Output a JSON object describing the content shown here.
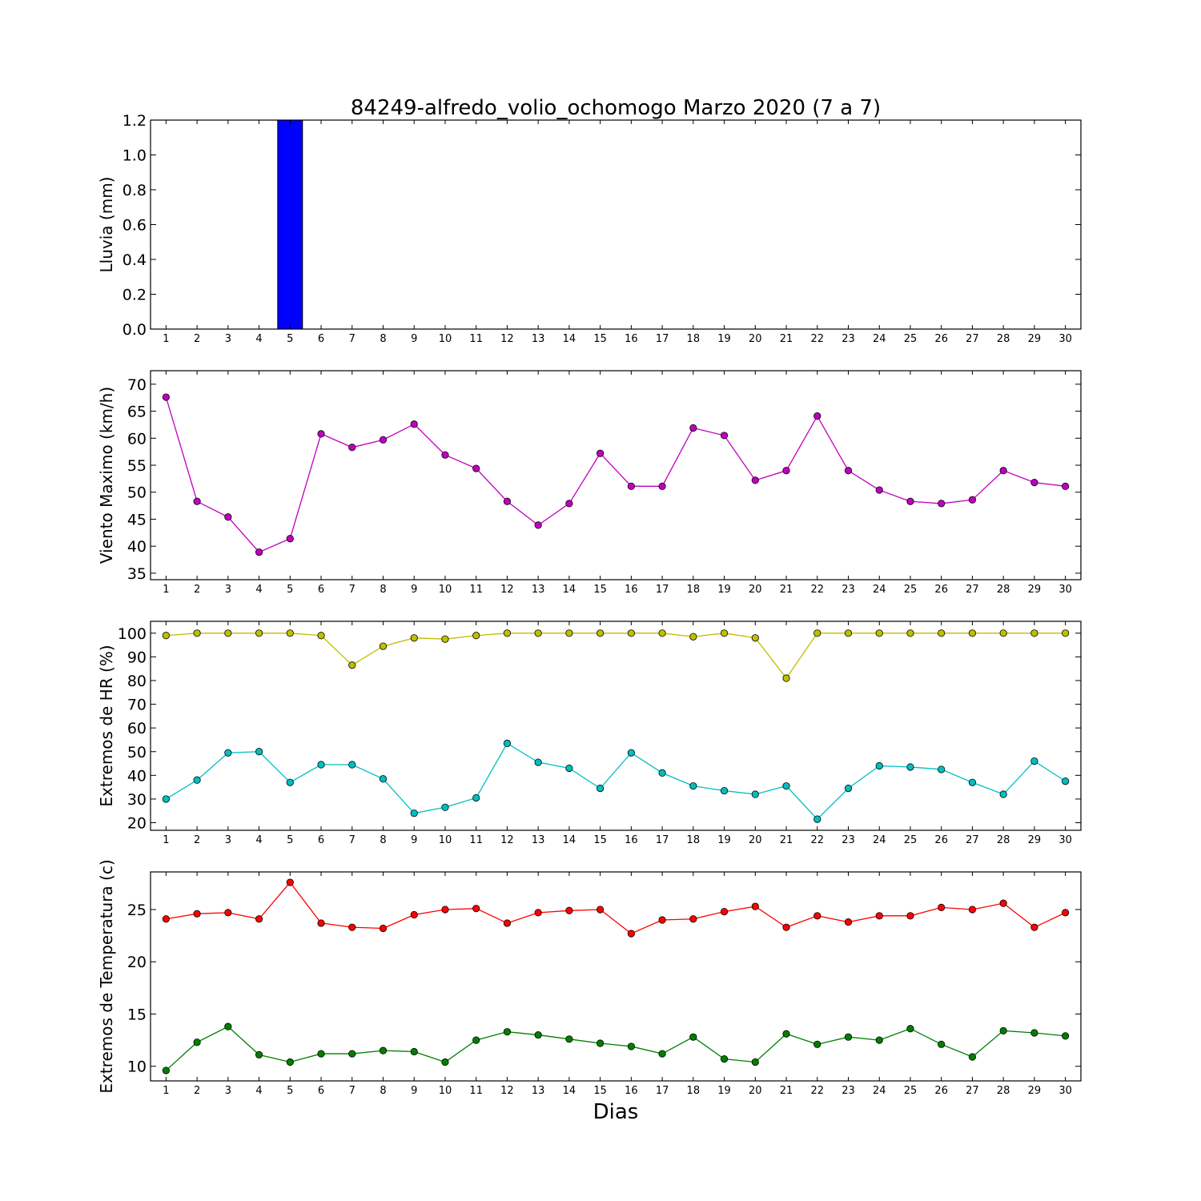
{
  "title": "84249-alfredo_volio_ochomogo Marzo 2020  (7 a 7)",
  "xlabel": "Dias",
  "chart_data": [
    {
      "type": "bar",
      "ylabel": "Lluvia (mm)",
      "x": [
        1,
        2,
        3,
        4,
        5,
        6,
        7,
        8,
        9,
        10,
        11,
        12,
        13,
        14,
        15,
        16,
        17,
        18,
        19,
        20,
        21,
        22,
        23,
        24,
        25,
        26,
        27,
        28,
        29,
        30
      ],
      "xlim": [
        0.5,
        30.5
      ],
      "ylim": [
        0.0,
        1.2
      ],
      "yticks": [
        0.0,
        0.2,
        0.4,
        0.6,
        0.8,
        1.0,
        1.2
      ],
      "ytick_labels": [
        "0.0",
        "0.2",
        "0.4",
        "0.6",
        "0.8",
        "1.0",
        "1.2"
      ],
      "series": [
        {
          "color": "#0000ff",
          "values": [
            0,
            0,
            0,
            0,
            1.2,
            0,
            0,
            0,
            0,
            0,
            0,
            0,
            0,
            0,
            0,
            0,
            0,
            0,
            0,
            0,
            0,
            0,
            0,
            0,
            0,
            0,
            0,
            0,
            0,
            0
          ]
        }
      ]
    },
    {
      "type": "line",
      "ylabel": "Viento Maximo (km/h)",
      "x": [
        1,
        2,
        3,
        4,
        5,
        6,
        7,
        8,
        9,
        10,
        11,
        12,
        13,
        14,
        15,
        16,
        17,
        18,
        19,
        20,
        21,
        22,
        23,
        24,
        25,
        26,
        27,
        28,
        29,
        30
      ],
      "xlim": [
        0.5,
        30.5
      ],
      "ylim": [
        33.8,
        72.5
      ],
      "yticks": [
        35,
        40,
        45,
        50,
        55,
        60,
        65,
        70
      ],
      "ytick_labels": [
        "35",
        "40",
        "45",
        "50",
        "55",
        "60",
        "65",
        "70"
      ],
      "series": [
        {
          "color": "#bf00bf",
          "values": [
            67.6,
            48.3,
            45.4,
            38.9,
            41.4,
            60.8,
            58.3,
            59.7,
            62.6,
            56.9,
            54.4,
            48.3,
            43.9,
            47.9,
            57.2,
            51.1,
            51.1,
            61.9,
            60.5,
            52.2,
            54.0,
            64.1,
            54.0,
            50.4,
            48.3,
            47.9,
            48.6,
            54.0,
            51.8,
            51.1
          ]
        }
      ]
    },
    {
      "type": "line",
      "ylabel": "Extremos de HR (%)",
      "x": [
        1,
        2,
        3,
        4,
        5,
        6,
        7,
        8,
        9,
        10,
        11,
        12,
        13,
        14,
        15,
        16,
        17,
        18,
        19,
        20,
        21,
        22,
        23,
        24,
        25,
        26,
        27,
        28,
        29,
        30
      ],
      "xlim": [
        0.5,
        30.5
      ],
      "ylim": [
        16.8,
        105.0
      ],
      "yticks": [
        20,
        30,
        40,
        50,
        60,
        70,
        80,
        90,
        100
      ],
      "ytick_labels": [
        "20",
        "30",
        "40",
        "50",
        "60",
        "70",
        "80",
        "90",
        "100"
      ],
      "series": [
        {
          "color": "#bfbf00",
          "values": [
            99,
            100,
            100,
            100,
            100,
            99,
            86.5,
            94.5,
            98,
            97.5,
            99,
            100,
            100,
            100,
            100,
            100,
            100,
            98.5,
            100,
            98,
            81,
            100,
            100,
            100,
            100,
            100,
            100,
            100,
            100,
            100
          ]
        },
        {
          "color": "#00bfbf",
          "values": [
            30,
            38,
            49.5,
            50,
            37,
            44.5,
            44.5,
            38.5,
            24,
            26.5,
            30.5,
            53.5,
            45.5,
            43,
            34.5,
            49.5,
            41,
            35.5,
            33.5,
            32,
            35.5,
            21.5,
            34.5,
            44,
            43.5,
            42.5,
            37,
            32,
            46,
            37.5
          ]
        }
      ]
    },
    {
      "type": "line",
      "ylabel": "Extremos de Temperatura (c)",
      "x": [
        1,
        2,
        3,
        4,
        5,
        6,
        7,
        8,
        9,
        10,
        11,
        12,
        13,
        14,
        15,
        16,
        17,
        18,
        19,
        20,
        21,
        22,
        23,
        24,
        25,
        26,
        27,
        28,
        29,
        30
      ],
      "xlim": [
        0.5,
        30.5
      ],
      "ylim": [
        8.6,
        28.6
      ],
      "yticks": [
        10,
        15,
        20,
        25
      ],
      "ytick_labels": [
        "10",
        "15",
        "20",
        "25"
      ],
      "series": [
        {
          "color": "#ff0000",
          "values": [
            24.1,
            24.6,
            24.7,
            24.1,
            27.6,
            23.7,
            23.3,
            23.2,
            24.5,
            25.0,
            25.1,
            23.7,
            24.7,
            24.9,
            25.0,
            22.7,
            24.0,
            24.1,
            24.8,
            25.3,
            23.3,
            24.4,
            23.8,
            24.4,
            24.4,
            25.2,
            25.0,
            25.6,
            23.3,
            24.7
          ]
        },
        {
          "color": "#007f00",
          "values": [
            9.6,
            12.3,
            13.8,
            11.1,
            10.4,
            11.2,
            11.2,
            11.5,
            11.4,
            10.4,
            12.5,
            13.3,
            13.0,
            12.6,
            12.2,
            11.9,
            11.2,
            12.8,
            10.7,
            10.4,
            13.1,
            12.1,
            12.8,
            12.5,
            13.6,
            12.1,
            10.9,
            13.4,
            13.2,
            12.9
          ]
        }
      ]
    }
  ]
}
